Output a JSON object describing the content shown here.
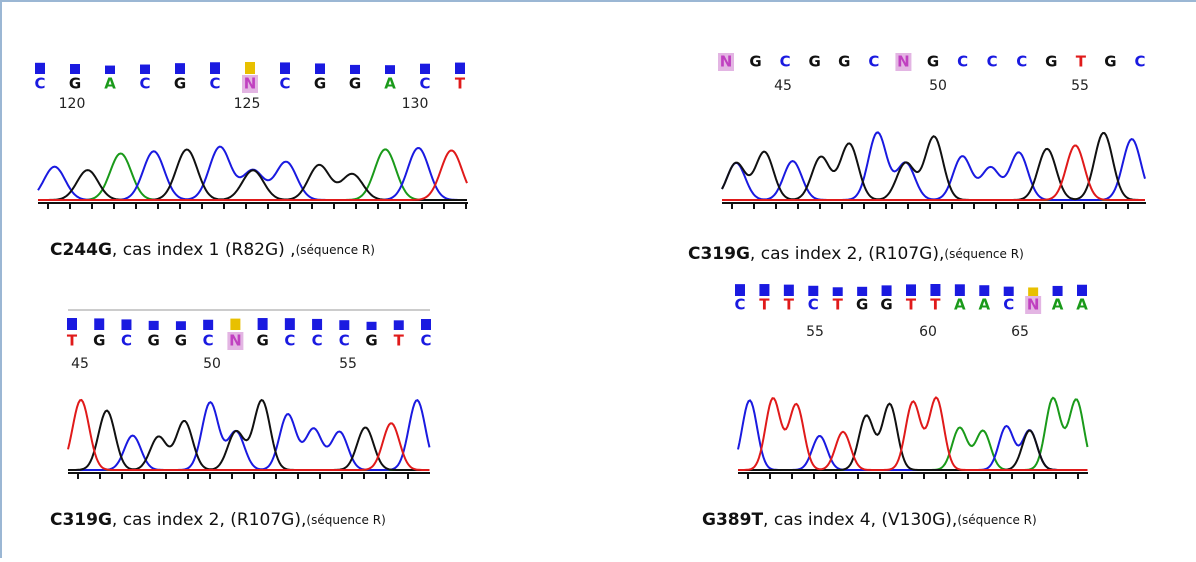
{
  "panels": [
    {
      "sequence": [
        "C",
        "G",
        "A",
        "C",
        "G",
        "C",
        "N",
        "C",
        "G",
        "G",
        "A",
        "C",
        "T"
      ],
      "positions": [
        120,
        125,
        130
      ],
      "caption": {
        "mutation": "C244G",
        "text": ", cas index 1 (R82G) ,",
        "note": "(séquence R)"
      }
    },
    {
      "sequence": [
        "N",
        "G",
        "C",
        "G",
        "G",
        "C",
        "N",
        "G",
        "C",
        "C",
        "C",
        "G",
        "T",
        "G",
        "C"
      ],
      "positions": [
        45,
        50,
        55
      ],
      "caption": {
        "mutation": "C319G",
        "text": ", cas index 2, (R107G),",
        "note": "(séquence R)"
      }
    },
    {
      "sequence": [
        "T",
        "G",
        "C",
        "G",
        "G",
        "C",
        "N",
        "G",
        "C",
        "C",
        "C",
        "G",
        "T",
        "C"
      ],
      "positions": [
        45,
        50,
        55
      ],
      "caption": {
        "mutation": "C319G",
        "text": ", cas index 2, (R107G),",
        "note": "(séquence R)"
      }
    },
    {
      "sequence": [
        "C",
        "T",
        "T",
        "C",
        "T",
        "G",
        "G",
        "T",
        "T",
        "A",
        "A",
        "C",
        "N",
        "A",
        "A"
      ],
      "positions": [
        55,
        60,
        65
      ],
      "caption": {
        "mutation": "G389T",
        "text": ", cas index 4, (V130G),",
        "note": "(séquence R)"
      }
    }
  ]
}
